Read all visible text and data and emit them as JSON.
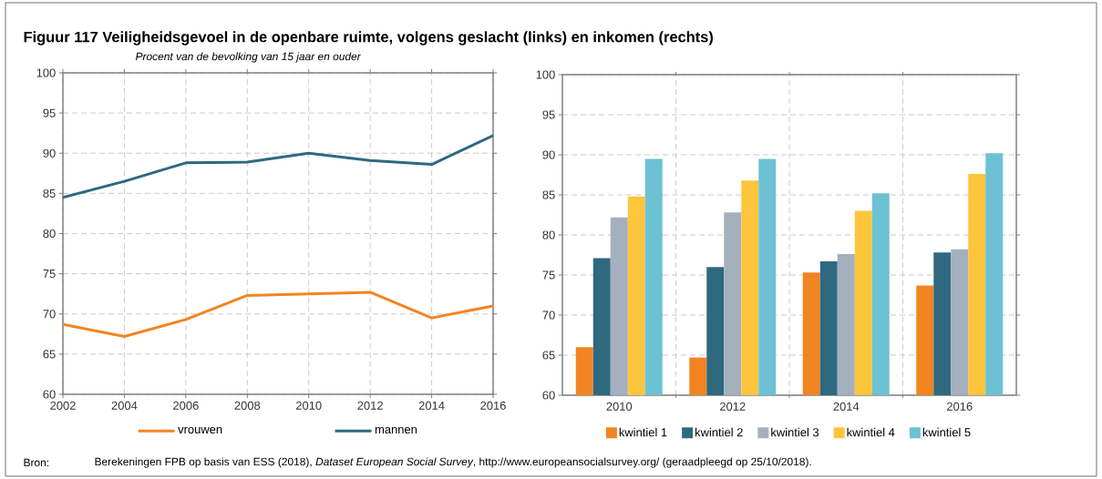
{
  "chart_data": [
    {
      "type": "line",
      "title": "Figuur 117  Veiligheidsgevoel in de openbare ruimte, volgens geslacht (links) en inkomen (rechts)",
      "subtitle": "Procent van de bevolking van 15 jaar en ouder",
      "x": [
        2002,
        2004,
        2006,
        2008,
        2010,
        2012,
        2014,
        2016
      ],
      "series": [
        {
          "name": "vrouwen",
          "color": "#f28522",
          "values": [
            68.7,
            67.2,
            69.3,
            72.3,
            72.5,
            72.7,
            69.5,
            71.0
          ]
        },
        {
          "name": "mannen",
          "color": "#2e6980",
          "values": [
            84.5,
            86.5,
            88.8,
            88.9,
            90.0,
            89.1,
            88.6,
            92.2
          ]
        }
      ],
      "xlim": [
        2002,
        2016
      ],
      "xticks": [
        2002,
        2004,
        2006,
        2008,
        2010,
        2012,
        2014,
        2016
      ],
      "ylim": [
        60,
        100
      ],
      "yticks": [
        60,
        65,
        70,
        75,
        80,
        85,
        90,
        95,
        100
      ],
      "grid": true,
      "legend": "bottom",
      "annotations": [
        "Bron:",
        "Berekeningen FPB op basis van ESS (2018), *Dataset European Social Survey*, http://www.europeansocialsurvey.org/ (geraadpleegd op 25/10/2018)."
      ]
    },
    {
      "type": "bar",
      "categories": [
        "2010",
        "2012",
        "2014",
        "2016"
      ],
      "series": [
        {
          "name": "kwintiel 1",
          "color": "#f28522",
          "values": [
            66.0,
            64.7,
            75.3,
            73.7
          ]
        },
        {
          "name": "kwintiel 2",
          "color": "#2e6980",
          "values": [
            77.1,
            76.0,
            76.7,
            77.8
          ]
        },
        {
          "name": "kwintiel 3",
          "color": "#a4b0be",
          "values": [
            82.2,
            82.8,
            77.6,
            78.2
          ]
        },
        {
          "name": "kwintiel 4",
          "color": "#fdc53c",
          "values": [
            84.8,
            86.8,
            83.0,
            87.6
          ]
        },
        {
          "name": "kwintiel 5",
          "color": "#6cc2d2",
          "values": [
            89.5,
            89.5,
            85.2,
            90.2
          ]
        }
      ],
      "ylim": [
        60,
        100
      ],
      "yticks": [
        60,
        65,
        70,
        75,
        80,
        85,
        90,
        95,
        100
      ],
      "grid": true,
      "legend": "bottom"
    }
  ]
}
